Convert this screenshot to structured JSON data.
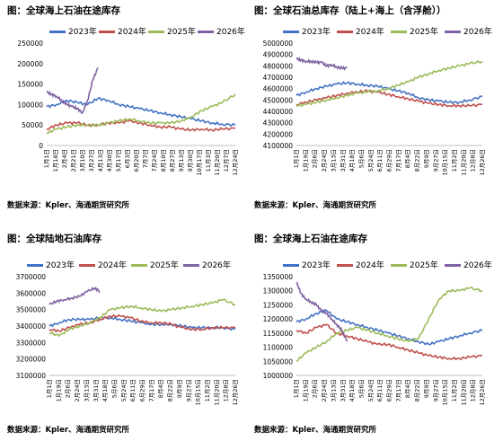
{
  "legend_colors": {
    "2023": "#4472c4",
    "2024": "#c0504d",
    "2025": "#9bbb59",
    "2026": "#8064a2"
  },
  "x_labels": [
    "1月1日",
    "1月18日",
    "2月4日",
    "2月21日",
    "3月10日",
    "3月27日",
    "4月13日",
    "4月30日",
    "5月17日",
    "6月3日",
    "6月20日",
    "7月7日",
    "7月24日",
    "8月10日",
    "8月27日",
    "9月13日",
    "9月30日",
    "10月17日",
    "11月3日",
    "11月20日",
    "12月7日",
    "12月24日"
  ],
  "panels": [
    {
      "title": "图：全球海上石油在途库存",
      "source": "数据来源：Kpler、海通期货研究所",
      "x_labels": [
        "1月1日",
        "1月18日",
        "2月4日",
        "2月21日",
        "3月10日",
        "3月27日",
        "4月13日",
        "4月30日",
        "5月17日",
        "6月3日",
        "6月20日",
        "7月7日",
        "7月24日",
        "8月10日",
        "8月27日",
        "9月13日",
        "9月30日",
        "10月17日",
        "11月3日",
        "11月20日",
        "12月7日",
        "12月24日"
      ],
      "legend": [
        "2023年",
        "2024年",
        "2025年",
        "2026年"
      ],
      "y_ticks": [
        "0",
        "50000",
        "100000",
        "150000",
        "200000",
        "250000"
      ]
    },
    {
      "title": "图：全球石油总库存（陆上+海上（含浮舱））",
      "source": "数据来源：Kpler、海通期货研究所",
      "x_labels": [
        "1月1日",
        "1月19日",
        "2月6日",
        "2月24日",
        "3月13日",
        "3月31日",
        "4月18日",
        "5月6日",
        "5月24日",
        "6月11日",
        "6月29日",
        "7月17日",
        "8月4日",
        "8月22日",
        "9月9日",
        "9月27日",
        "10月15日",
        "11月2日",
        "11月20日",
        "12月8日",
        "12月26日"
      ],
      "legend": [
        "2023年",
        "2024年",
        "2025年",
        "2026年"
      ],
      "y_ticks": [
        "4100000",
        "4200000",
        "4300000",
        "4400000",
        "4500000",
        "4600000",
        "4700000",
        "4800000",
        "4900000",
        "5000000"
      ]
    },
    {
      "title": "图：全球陆地石油库存",
      "source": "数据来源：Kpler、海通期货研究所",
      "x_labels": [
        "1月1日",
        "1月19日",
        "2月6日",
        "2月24日",
        "3月13日",
        "3月31日",
        "4月18日",
        "5月6日",
        "5月24日",
        "6月11日",
        "6月29日",
        "7月17日",
        "8月4日",
        "8月22日",
        "9月9日",
        "9月27日",
        "10月15日",
        "11月2日",
        "11月20日",
        "12月8日",
        "12月26日"
      ],
      "legend": [
        "2023年",
        "2024年",
        "2025年",
        "2026年"
      ],
      "y_ticks": [
        "3100000",
        "3200000",
        "3300000",
        "3400000",
        "3500000",
        "3600000",
        "3700000"
      ]
    },
    {
      "title": "图：全球海上石油在途库存",
      "source": "数据来源：Kpler、海通期货研究所",
      "x_labels": [
        "1月1日",
        "1月19日",
        "2月6日",
        "2月24日",
        "3月13日",
        "3月31日",
        "4月18日",
        "5月6日",
        "5月24日",
        "6月11日",
        "6月29日",
        "7月17日",
        "8月4日",
        "8月22日",
        "9月9日",
        "9月27日",
        "10月15日",
        "11月2日",
        "11月20日",
        "12月8日",
        "12月26日"
      ],
      "legend": [
        "2023年",
        "2024年",
        "2025年",
        "2026年"
      ],
      "y_ticks": [
        "1000000",
        "1050000",
        "1100000",
        "1150000",
        "1200000",
        "1250000",
        "1300000",
        "1350000"
      ]
    }
  ],
  "chart_data": [
    {
      "type": "line",
      "title": "图：全球海上石油在途库存",
      "xlabel": "",
      "ylabel": "",
      "ylim": [
        0,
        250000
      ],
      "x_range_days": [
        1,
        365
      ],
      "series": [
        {
          "name": "2023年",
          "color": "#4472c4",
          "x": [
            1,
            20,
            40,
            60,
            80,
            100,
            120,
            140,
            160,
            180,
            200,
            220,
            240,
            260,
            280,
            300,
            320,
            340,
            365
          ],
          "y": [
            95000,
            100000,
            110000,
            105000,
            100000,
            115000,
            110000,
            100000,
            95000,
            90000,
            85000,
            80000,
            75000,
            70000,
            65000,
            60000,
            55000,
            52000,
            50000
          ]
        },
        {
          "name": "2024年",
          "color": "#c0504d",
          "x": [
            1,
            20,
            40,
            60,
            80,
            100,
            120,
            140,
            160,
            180,
            200,
            220,
            240,
            260,
            280,
            300,
            320,
            340,
            365
          ],
          "y": [
            40000,
            50000,
            55000,
            55000,
            50000,
            50000,
            55000,
            55000,
            60000,
            55000,
            50000,
            45000,
            45000,
            40000,
            38000,
            40000,
            38000,
            40000,
            42000
          ]
        },
        {
          "name": "2025年",
          "color": "#9bbb59",
          "x": [
            1,
            20,
            40,
            60,
            80,
            100,
            120,
            140,
            160,
            180,
            200,
            220,
            240,
            260,
            280,
            300,
            320,
            340,
            365
          ],
          "y": [
            30000,
            40000,
            45000,
            50000,
            50000,
            50000,
            55000,
            60000,
            65000,
            60000,
            55000,
            55000,
            55000,
            60000,
            70000,
            85000,
            95000,
            105000,
            125000
          ]
        },
        {
          "name": "2026年",
          "color": "#8064a2",
          "x": [
            1,
            10,
            20,
            30,
            40,
            50,
            60,
            70,
            80,
            90,
            100
          ],
          "y": [
            130000,
            125000,
            120000,
            110000,
            100000,
            95000,
            90000,
            80000,
            110000,
            160000,
            190000
          ]
        }
      ]
    },
    {
      "type": "line",
      "title": "图：全球石油总库存（陆上+海上（含浮舱））",
      "xlabel": "",
      "ylabel": "",
      "ylim": [
        4100000,
        5000000
      ],
      "x_range_days": [
        1,
        365
      ],
      "series": [
        {
          "name": "2023年",
          "color": "#4472c4",
          "x": [
            1,
            20,
            40,
            60,
            80,
            100,
            120,
            140,
            160,
            180,
            200,
            220,
            240,
            260,
            280,
            300,
            320,
            340,
            365
          ],
          "y": [
            4540000,
            4570000,
            4600000,
            4620000,
            4640000,
            4650000,
            4640000,
            4630000,
            4620000,
            4600000,
            4580000,
            4560000,
            4520000,
            4500000,
            4490000,
            4480000,
            4480000,
            4500000,
            4530000
          ]
        },
        {
          "name": "2024年",
          "color": "#c0504d",
          "x": [
            1,
            20,
            40,
            60,
            80,
            100,
            120,
            140,
            160,
            180,
            200,
            220,
            240,
            260,
            280,
            300,
            320,
            340,
            365
          ],
          "y": [
            4460000,
            4480000,
            4500000,
            4520000,
            4540000,
            4560000,
            4570000,
            4580000,
            4570000,
            4550000,
            4530000,
            4510000,
            4490000,
            4470000,
            4460000,
            4450000,
            4450000,
            4450000,
            4460000
          ]
        },
        {
          "name": "2025年",
          "color": "#9bbb59",
          "x": [
            1,
            20,
            40,
            60,
            80,
            100,
            120,
            140,
            160,
            180,
            200,
            220,
            240,
            260,
            280,
            300,
            320,
            340,
            365
          ],
          "y": [
            4450000,
            4460000,
            4480000,
            4500000,
            4520000,
            4540000,
            4560000,
            4570000,
            4580000,
            4600000,
            4630000,
            4660000,
            4700000,
            4730000,
            4760000,
            4780000,
            4800000,
            4820000,
            4840000
          ]
        },
        {
          "name": "2026年",
          "color": "#8064a2",
          "x": [
            1,
            10,
            20,
            30,
            40,
            50,
            60,
            70,
            80,
            90,
            100
          ],
          "y": [
            4860000,
            4850000,
            4840000,
            4840000,
            4830000,
            4830000,
            4800000,
            4810000,
            4790000,
            4780000,
            4780000
          ]
        }
      ]
    },
    {
      "type": "line",
      "title": "图：全球陆地石油库存",
      "xlabel": "",
      "ylabel": "",
      "ylim": [
        3100000,
        3700000
      ],
      "x_range_days": [
        1,
        365
      ],
      "series": [
        {
          "name": "2023年",
          "color": "#4472c4",
          "x": [
            1,
            20,
            40,
            60,
            80,
            100,
            120,
            140,
            160,
            180,
            200,
            220,
            240,
            260,
            280,
            300,
            320,
            340,
            365
          ],
          "y": [
            3400000,
            3420000,
            3440000,
            3440000,
            3440000,
            3450000,
            3450000,
            3440000,
            3430000,
            3420000,
            3410000,
            3410000,
            3410000,
            3400000,
            3390000,
            3390000,
            3390000,
            3390000,
            3380000
          ]
        },
        {
          "name": "2024年",
          "color": "#c0504d",
          "x": [
            1,
            20,
            40,
            60,
            80,
            100,
            120,
            140,
            160,
            180,
            200,
            220,
            240,
            260,
            280,
            300,
            320,
            340,
            365
          ],
          "y": [
            3380000,
            3370000,
            3390000,
            3410000,
            3420000,
            3440000,
            3460000,
            3460000,
            3450000,
            3430000,
            3420000,
            3420000,
            3410000,
            3390000,
            3380000,
            3380000,
            3390000,
            3390000,
            3390000
          ]
        },
        {
          "name": "2025年",
          "color": "#9bbb59",
          "x": [
            1,
            20,
            40,
            60,
            80,
            100,
            120,
            140,
            160,
            180,
            200,
            220,
            240,
            260,
            280,
            300,
            320,
            340,
            365
          ],
          "y": [
            3360000,
            3340000,
            3380000,
            3400000,
            3420000,
            3450000,
            3500000,
            3510000,
            3520000,
            3510000,
            3500000,
            3490000,
            3500000,
            3510000,
            3520000,
            3530000,
            3540000,
            3560000,
            3530000
          ]
        },
        {
          "name": "2026年",
          "color": "#8064a2",
          "x": [
            1,
            15,
            30,
            45,
            60,
            75,
            90,
            100
          ],
          "y": [
            3530000,
            3550000,
            3560000,
            3570000,
            3580000,
            3610000,
            3630000,
            3610000
          ]
        }
      ]
    },
    {
      "type": "line",
      "title": "图：全球海上石油在途库存",
      "xlabel": "",
      "ylabel": "",
      "ylim": [
        1000000,
        1350000
      ],
      "x_range_days": [
        1,
        365
      ],
      "series": [
        {
          "name": "2023年",
          "color": "#4472c4",
          "x": [
            1,
            20,
            40,
            60,
            80,
            100,
            120,
            140,
            160,
            180,
            200,
            220,
            240,
            260,
            280,
            300,
            320,
            340,
            365
          ],
          "y": [
            1190000,
            1200000,
            1220000,
            1230000,
            1200000,
            1190000,
            1180000,
            1170000,
            1160000,
            1150000,
            1140000,
            1130000,
            1120000,
            1110000,
            1120000,
            1130000,
            1140000,
            1150000,
            1160000
          ]
        },
        {
          "name": "2024年",
          "color": "#c0504d",
          "x": [
            1,
            20,
            40,
            60,
            80,
            100,
            120,
            140,
            160,
            180,
            200,
            220,
            240,
            260,
            280,
            300,
            320,
            340,
            365
          ],
          "y": [
            1160000,
            1150000,
            1170000,
            1180000,
            1150000,
            1140000,
            1130000,
            1120000,
            1110000,
            1110000,
            1100000,
            1090000,
            1080000,
            1070000,
            1065000,
            1060000,
            1060000,
            1065000,
            1070000
          ]
        },
        {
          "name": "2025年",
          "color": "#9bbb59",
          "x": [
            1,
            20,
            40,
            60,
            80,
            100,
            120,
            140,
            160,
            180,
            200,
            220,
            240,
            260,
            280,
            300,
            320,
            340,
            365
          ],
          "y": [
            1050000,
            1080000,
            1100000,
            1120000,
            1150000,
            1160000,
            1170000,
            1160000,
            1150000,
            1140000,
            1130000,
            1120000,
            1130000,
            1200000,
            1270000,
            1300000,
            1300000,
            1310000,
            1300000
          ]
        },
        {
          "name": "2026年",
          "color": "#8064a2",
          "x": [
            1,
            10,
            20,
            30,
            40,
            50,
            60,
            70,
            80,
            90,
            100
          ],
          "y": [
            1330000,
            1290000,
            1270000,
            1260000,
            1250000,
            1230000,
            1220000,
            1200000,
            1180000,
            1160000,
            1120000
          ]
        }
      ]
    }
  ]
}
